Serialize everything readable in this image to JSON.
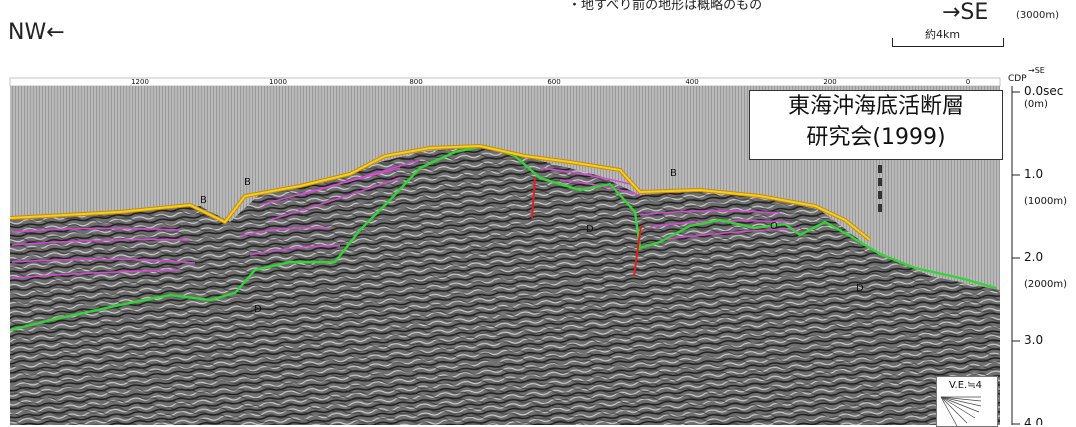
{
  "header": {
    "left_direction": "NW←",
    "right_direction": "→SE",
    "note": "・地すべり前の地形は概略のもの",
    "depth_top": "(3000m)",
    "scale_label": "約4km"
  },
  "panel": {
    "title_line1": "東海沖海底活断層",
    "title_line2": "研究会(1999)",
    "ve_label": "V.E.≒4"
  },
  "cdp_axis": {
    "title": "CDP",
    "direction": "→SE",
    "ticks": [
      "1200",
      "1000",
      "800",
      "600",
      "400",
      "200",
      "0"
    ]
  },
  "time_axis": {
    "labels": [
      {
        "time": "0.0sec",
        "depth": "(0m)"
      },
      {
        "time": "1.0",
        "depth": "(1000m)"
      },
      {
        "time": "2.0",
        "depth": "(2000m)"
      },
      {
        "time": "3.0",
        "depth": ""
      },
      {
        "time": "4.0",
        "depth": ""
      }
    ]
  },
  "horizon_labels": {
    "b1": "B",
    "b2": "B",
    "b3": "B",
    "d1": "D",
    "d2": "D",
    "d3": "D",
    "o1": "O"
  },
  "colors": {
    "horizon_b": "#f2d21b",
    "horizon_b_outline": "#c98a12",
    "horizon_d": "#35d335",
    "intra_layers": "#d64ad6",
    "faults": "#e02020",
    "seismic_bg": "#8a8a8a"
  }
}
